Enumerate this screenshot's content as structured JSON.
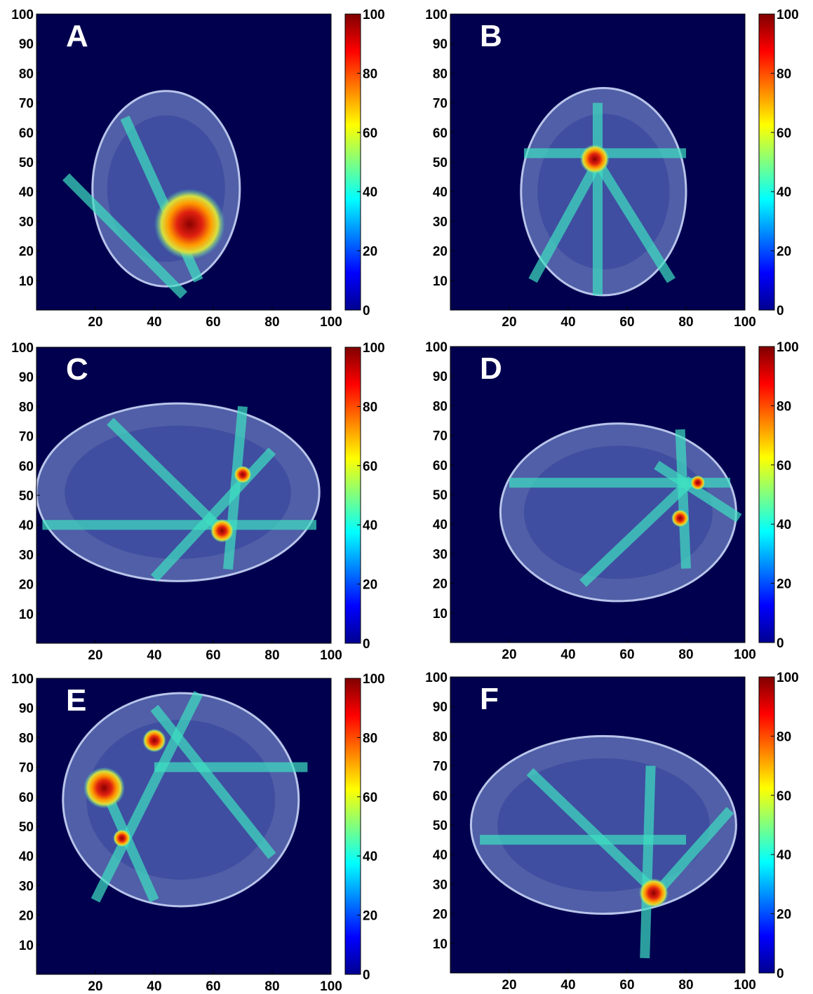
{
  "chart_data": [
    {
      "type": "heatmap",
      "label": "A",
      "colormap": "jet",
      "background": "#00004f",
      "xlim": [
        0,
        100
      ],
      "ylim": [
        0,
        100
      ],
      "xticks": [
        20,
        40,
        60,
        80,
        100
      ],
      "yticks": [
        10,
        20,
        30,
        40,
        50,
        60,
        70,
        80,
        90,
        100
      ],
      "clim": [
        0,
        100
      ],
      "cticks": [
        0,
        20,
        40,
        60,
        80,
        100
      ]
    },
    {
      "type": "heatmap",
      "label": "B",
      "colormap": "jet",
      "background": "#00004f",
      "xlim": [
        0,
        100
      ],
      "ylim": [
        0,
        100
      ],
      "xticks": [
        20,
        40,
        60,
        80,
        100
      ],
      "yticks": [
        10,
        20,
        30,
        40,
        50,
        60,
        70,
        80,
        90,
        100
      ],
      "clim": [
        0,
        100
      ],
      "cticks": [
        0,
        20,
        40,
        60,
        80,
        100
      ]
    },
    {
      "type": "heatmap",
      "label": "C",
      "colormap": "jet",
      "background": "#00004f",
      "xlim": [
        0,
        100
      ],
      "ylim": [
        0,
        100
      ],
      "xticks": [
        20,
        40,
        60,
        80,
        100
      ],
      "yticks": [
        10,
        20,
        30,
        40,
        50,
        60,
        70,
        80,
        90,
        100
      ],
      "clim": [
        0,
        100
      ],
      "cticks": [
        0,
        20,
        40,
        60,
        80,
        100
      ]
    },
    {
      "type": "heatmap",
      "label": "D",
      "colormap": "jet",
      "background": "#00004f",
      "xlim": [
        0,
        100
      ],
      "ylim": [
        0,
        100
      ],
      "xticks": [
        20,
        40,
        60,
        80,
        100
      ],
      "yticks": [
        10,
        20,
        30,
        40,
        50,
        60,
        70,
        80,
        90,
        100
      ],
      "clim": [
        0,
        100
      ],
      "cticks": [
        0,
        20,
        40,
        60,
        80,
        100
      ]
    },
    {
      "type": "heatmap",
      "label": "E",
      "colormap": "jet",
      "background": "#00004f",
      "xlim": [
        0,
        100
      ],
      "ylim": [
        0,
        100
      ],
      "xticks": [
        20,
        40,
        60,
        80,
        100
      ],
      "yticks": [
        10,
        20,
        30,
        40,
        50,
        60,
        70,
        80,
        90,
        100
      ],
      "clim": [
        0,
        100
      ],
      "cticks": [
        0,
        20,
        40,
        60,
        80,
        100
      ]
    },
    {
      "type": "heatmap",
      "label": "F",
      "colormap": "jet",
      "background": "#00004f",
      "xlim": [
        0,
        100
      ],
      "ylim": [
        0,
        100
      ],
      "xticks": [
        20,
        40,
        60,
        80,
        100
      ],
      "yticks": [
        10,
        20,
        30,
        40,
        50,
        60,
        70,
        80,
        90,
        100
      ],
      "clim": [
        0,
        100
      ],
      "cticks": [
        0,
        20,
        40,
        60,
        80,
        100
      ]
    }
  ]
}
